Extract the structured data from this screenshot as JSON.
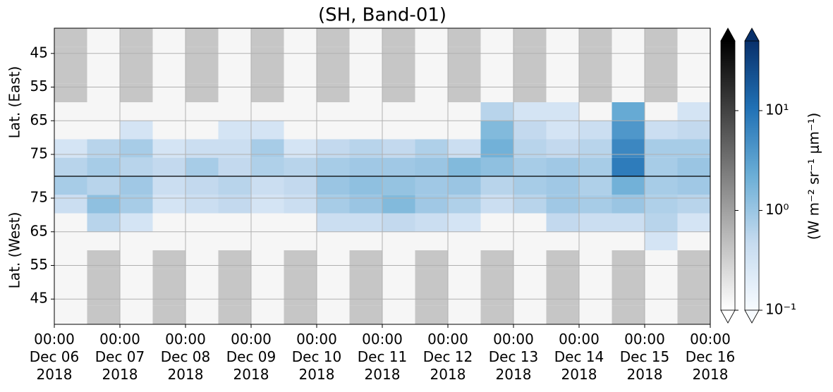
{
  "chart_data": {
    "type": "heatmap",
    "title": "(SH, Band-01)",
    "xlim": [
      "2018-12-06T00:00",
      "2018-12-16T00:00"
    ],
    "xticks": [
      {
        "value": "2018-12-06T00:00",
        "label": "00:00\nDec 06\n2018"
      },
      {
        "value": "2018-12-07T00:00",
        "label": "00:00\nDec 07\n2018"
      },
      {
        "value": "2018-12-08T00:00",
        "label": "00:00\nDec 08\n2018"
      },
      {
        "value": "2018-12-09T00:00",
        "label": "00:00\nDec 09\n2018"
      },
      {
        "value": "2018-12-10T00:00",
        "label": "00:00\nDec 10\n2018"
      },
      {
        "value": "2018-12-11T00:00",
        "label": "00:00\nDec 11\n2018"
      },
      {
        "value": "2018-12-12T00:00",
        "label": "00:00\nDec 12\n2018"
      },
      {
        "value": "2018-12-13T00:00",
        "label": "00:00\nDec 13\n2018"
      },
      {
        "value": "2018-12-14T00:00",
        "label": "00:00\nDec 14\n2018"
      },
      {
        "value": "2018-12-15T00:00",
        "label": "00:00\nDec 15\n2018"
      },
      {
        "value": "2018-12-16T00:00",
        "label": "00:00\nDec 16\n2018"
      }
    ],
    "x_bins": [
      "2018-12-06T00:00",
      "2018-12-06T12:00",
      "2018-12-07T00:00",
      "2018-12-07T12:00",
      "2018-12-08T00:00",
      "2018-12-08T12:00",
      "2018-12-09T00:00",
      "2018-12-09T12:00",
      "2018-12-10T00:00",
      "2018-12-10T12:00",
      "2018-12-11T00:00",
      "2018-12-11T12:00",
      "2018-12-12T00:00",
      "2018-12-12T12:00",
      "2018-12-13T00:00",
      "2018-12-13T12:00",
      "2018-12-14T00:00",
      "2018-12-14T12:00",
      "2018-12-15T00:00",
      "2018-12-15T12:00",
      "2018-12-16T00:00"
    ],
    "y_bins": [
      37.5,
      43,
      48.5,
      54,
      59.5,
      65,
      70.5,
      76,
      81.5
    ],
    "grid": true,
    "colormaps": {
      "gray": [
        "#ffffff",
        "#000000"
      ],
      "blue": [
        "#f7fbff",
        "#c6dbef",
        "#6baed6",
        "#2171b5",
        "#08306b"
      ]
    },
    "colorbar": {
      "label": "(W m⁻² sr⁻¹ μm⁻¹)",
      "clim": [
        0.1,
        50
      ],
      "log": true,
      "extend": "both",
      "ticks": [
        {
          "value": 0.1,
          "label": "10⁻¹"
        },
        {
          "value": 1,
          "label": "10⁰"
        },
        {
          "value": 10,
          "label": "10¹"
        }
      ]
    },
    "panels": [
      {
        "ylabel": "Lat. (East)",
        "ylim": [
          81.5,
          37.5
        ],
        "yticks": [
          45,
          55,
          65,
          75
        ],
        "gray": [
          [
            0.4,
            null,
            0.4,
            null,
            0.4,
            null,
            0.4,
            null,
            0.4,
            null,
            0.4,
            null,
            0.4,
            null,
            0.4,
            null,
            0.4,
            null,
            0.4,
            null
          ],
          [
            0.4,
            null,
            0.4,
            null,
            0.4,
            null,
            0.4,
            null,
            0.4,
            null,
            0.4,
            null,
            0.4,
            null,
            0.4,
            null,
            0.4,
            null,
            0.4,
            null
          ],
          [
            0.4,
            null,
            0.4,
            null,
            0.4,
            null,
            0.4,
            null,
            0.4,
            null,
            0.4,
            null,
            0.4,
            null,
            0.4,
            null,
            0.4,
            null,
            0.4,
            null
          ],
          [
            0.4,
            null,
            0.4,
            null,
            0.4,
            null,
            0.4,
            null,
            0.4,
            null,
            0.4,
            null,
            0.4,
            null,
            0.4,
            null,
            0.4,
            null,
            0.4,
            null
          ],
          [
            null,
            null,
            null,
            null,
            null,
            null,
            null,
            null,
            null,
            null,
            null,
            null,
            null,
            null,
            null,
            null,
            null,
            null,
            null,
            null
          ],
          [
            null,
            null,
            null,
            null,
            null,
            null,
            null,
            null,
            null,
            null,
            null,
            null,
            null,
            null,
            null,
            null,
            null,
            null,
            null,
            null
          ],
          [
            null,
            null,
            null,
            null,
            null,
            null,
            null,
            null,
            null,
            null,
            null,
            null,
            null,
            null,
            null,
            null,
            null,
            null,
            null,
            null
          ],
          [
            null,
            null,
            null,
            null,
            null,
            null,
            null,
            null,
            null,
            null,
            null,
            null,
            null,
            null,
            null,
            null,
            null,
            null,
            null,
            null
          ]
        ],
        "blue": [
          [
            null,
            null,
            null,
            null,
            null,
            null,
            null,
            null,
            null,
            null,
            null,
            null,
            null,
            null,
            null,
            null,
            null,
            null,
            null,
            null
          ],
          [
            null,
            null,
            null,
            null,
            null,
            null,
            null,
            null,
            null,
            null,
            null,
            null,
            null,
            null,
            null,
            null,
            null,
            null,
            null,
            null
          ],
          [
            null,
            null,
            null,
            null,
            null,
            null,
            null,
            null,
            null,
            null,
            null,
            null,
            null,
            null,
            null,
            null,
            null,
            null,
            null,
            null
          ],
          [
            null,
            null,
            null,
            null,
            null,
            null,
            null,
            null,
            null,
            null,
            null,
            null,
            null,
            null,
            null,
            null,
            null,
            null,
            null,
            null
          ],
          [
            null,
            null,
            null,
            null,
            null,
            null,
            null,
            null,
            null,
            null,
            null,
            null,
            null,
            0.6,
            0.3,
            0.3,
            null,
            2.5,
            null,
            0.3
          ],
          [
            null,
            null,
            0.3,
            null,
            null,
            0.3,
            0.3,
            null,
            null,
            null,
            null,
            null,
            null,
            1.5,
            0.5,
            0.3,
            0.4,
            4,
            0.4,
            0.5
          ],
          [
            0.3,
            0.6,
            0.8,
            0.3,
            0.4,
            0.4,
            0.8,
            0.3,
            0.5,
            0.6,
            0.5,
            0.7,
            0.4,
            2,
            0.6,
            0.5,
            0.6,
            6,
            0.8,
            0.8
          ],
          [
            0.6,
            0.8,
            0.6,
            0.5,
            0.8,
            0.5,
            0.7,
            0.6,
            0.8,
            0.9,
            0.9,
            1,
            1.5,
            1.2,
            0.8,
            0.9,
            0.8,
            8,
            0.8,
            1
          ]
        ]
      },
      {
        "ylabel": "Lat. (West)",
        "ylim": [
          37.5,
          81.5
        ],
        "yticks": [
          45,
          55,
          65,
          75
        ],
        "gray": [
          [
            null,
            0.4,
            null,
            0.4,
            null,
            0.4,
            null,
            0.4,
            null,
            0.4,
            null,
            0.4,
            null,
            0.4,
            null,
            0.4,
            null,
            0.4,
            null,
            0.4
          ],
          [
            null,
            0.4,
            null,
            0.4,
            null,
            0.4,
            null,
            0.4,
            null,
            0.4,
            null,
            0.4,
            null,
            0.4,
            null,
            0.4,
            null,
            0.4,
            null,
            0.4
          ],
          [
            null,
            0.4,
            null,
            0.4,
            null,
            0.4,
            null,
            0.4,
            null,
            0.4,
            null,
            0.4,
            null,
            0.4,
            null,
            0.4,
            null,
            0.4,
            null,
            0.4
          ],
          [
            null,
            0.4,
            null,
            0.4,
            null,
            0.4,
            null,
            0.4,
            null,
            0.4,
            null,
            0.4,
            null,
            0.4,
            null,
            0.4,
            null,
            0.4,
            null,
            0.4
          ],
          [
            null,
            null,
            null,
            null,
            null,
            null,
            null,
            null,
            null,
            null,
            null,
            null,
            null,
            null,
            null,
            null,
            null,
            null,
            null,
            null
          ],
          [
            null,
            null,
            null,
            null,
            null,
            null,
            null,
            null,
            null,
            null,
            null,
            null,
            null,
            null,
            null,
            null,
            null,
            null,
            null,
            null
          ],
          [
            null,
            null,
            null,
            null,
            null,
            null,
            null,
            null,
            null,
            null,
            null,
            null,
            null,
            null,
            null,
            null,
            null,
            null,
            null,
            null
          ],
          [
            null,
            null,
            null,
            null,
            null,
            null,
            null,
            null,
            null,
            null,
            null,
            null,
            null,
            null,
            null,
            null,
            null,
            null,
            null,
            null
          ]
        ],
        "blue": [
          [
            null,
            null,
            null,
            null,
            null,
            null,
            null,
            null,
            null,
            null,
            null,
            null,
            null,
            null,
            null,
            null,
            null,
            null,
            null,
            null
          ],
          [
            null,
            null,
            null,
            null,
            null,
            null,
            null,
            null,
            null,
            null,
            null,
            null,
            null,
            null,
            null,
            null,
            null,
            null,
            null,
            null
          ],
          [
            null,
            null,
            null,
            null,
            null,
            null,
            null,
            null,
            null,
            null,
            null,
            null,
            null,
            null,
            null,
            null,
            null,
            null,
            null,
            null
          ],
          [
            null,
            null,
            null,
            null,
            null,
            null,
            null,
            null,
            null,
            null,
            null,
            null,
            null,
            null,
            null,
            null,
            null,
            null,
            null,
            null
          ],
          [
            null,
            null,
            null,
            null,
            null,
            null,
            null,
            null,
            null,
            null,
            null,
            null,
            null,
            null,
            null,
            null,
            null,
            null,
            0.3,
            null
          ],
          [
            null,
            0.6,
            0.3,
            null,
            null,
            null,
            null,
            null,
            0.4,
            0.4,
            0.5,
            0.4,
            0.3,
            null,
            null,
            0.5,
            0.4,
            0.4,
            0.6,
            0.3
          ],
          [
            0.4,
            1.2,
            0.8,
            0.3,
            0.4,
            0.5,
            0.3,
            0.4,
            0.8,
            1,
            1.5,
            0.9,
            0.7,
            0.4,
            0.6,
            0.9,
            0.8,
            1,
            0.7,
            0.6
          ],
          [
            0.8,
            0.6,
            0.9,
            0.4,
            0.5,
            0.6,
            0.4,
            0.5,
            1,
            1.2,
            1.1,
            0.9,
            1,
            0.6,
            0.8,
            0.9,
            0.7,
            2,
            0.8,
            0.9
          ]
        ]
      }
    ]
  }
}
